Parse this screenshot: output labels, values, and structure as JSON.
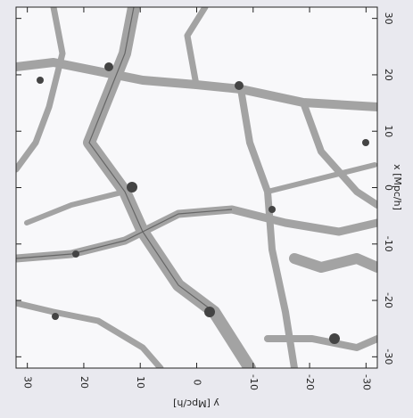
{
  "chart_data": {
    "type": "density-map",
    "xlabel": "x [Mpc/h]",
    "ylabel": "y [Mpc/h]",
    "xlim": [
      -32,
      32
    ],
    "xticks": [
      -30,
      -20,
      -10,
      0,
      10,
      20,
      30
    ],
    "ylim": [
      32,
      -32
    ],
    "yticks": [
      30,
      20,
      10,
      0,
      -10,
      -20,
      -30
    ]
  }
}
